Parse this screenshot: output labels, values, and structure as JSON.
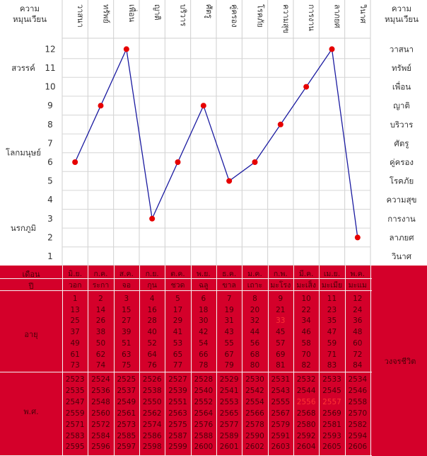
{
  "chart_data": {
    "type": "line",
    "corner_label": [
      "ความ",
      "หมุนเวียน"
    ],
    "categories": [
      "วาสนา",
      "ทรัพย์",
      "เพื่อน",
      "ญาติ",
      "บริวาร",
      "ศัตรู",
      "คู่ครอง",
      "โรคภัย",
      "ความสุข",
      "การงาน",
      "ลาภยศ",
      "วินาศ"
    ],
    "values": [
      6,
      9,
      12,
      3,
      6,
      9,
      5,
      6,
      8,
      10,
      12,
      2
    ],
    "ylim": [
      1,
      12
    ],
    "y_ticks": [
      1,
      2,
      3,
      4,
      5,
      6,
      7,
      8,
      9,
      10,
      11,
      12
    ],
    "zone_labels": [
      {
        "label": "สวรรค์",
        "y": 11
      },
      {
        "label": "โลกมนุษย์",
        "y": 6.5
      },
      {
        "label": "นรกภูมิ",
        "y": 2.5
      }
    ],
    "right_labels": [
      "วาสนา",
      "ทรัพย์",
      "เพื่อน",
      "ญาติ",
      "บริวาร",
      "ศัตรู",
      "คู่ครอง",
      "โรคภัย",
      "ความสุข",
      "การงาน",
      "ลาภยศ",
      "วินาศ"
    ],
    "line_color": "#1a1aa0",
    "marker_color": "#e60000",
    "grid": true
  },
  "table": {
    "month_label": "เดือน",
    "months": [
      "มิ.ย.",
      "ก.ค.",
      "ส.ค.",
      "ก.ย.",
      "ต.ค.",
      "พ.ย.",
      "ธ.ค.",
      "ม.ค.",
      "ก.พ.",
      "มี.ค.",
      "เม.ย.",
      "พ.ค."
    ],
    "year_label": "ปี",
    "years": [
      "วอก",
      "ระกา",
      "จอ",
      "กุน",
      "ชวด",
      "ฉลู",
      "ขาล",
      "เถาะ",
      "มะโรง",
      "มะเส็ง",
      "มะเมีย",
      "มะแม"
    ],
    "age_label": "อายุ",
    "ages": [
      [
        "1",
        "13",
        "25",
        "37",
        "49",
        "61",
        "73"
      ],
      [
        "2",
        "14",
        "26",
        "38",
        "50",
        "62",
        "74"
      ],
      [
        "3",
        "15",
        "27",
        "39",
        "51",
        "63",
        "75"
      ],
      [
        "4",
        "16",
        "28",
        "40",
        "52",
        "64",
        "76"
      ],
      [
        "5",
        "17",
        "29",
        "41",
        "53",
        "65",
        "77"
      ],
      [
        "6",
        "18",
        "30",
        "42",
        "54",
        "66",
        "78"
      ],
      [
        "7",
        "19",
        "31",
        "43",
        "55",
        "67",
        "79"
      ],
      [
        "8",
        "20",
        "32",
        "44",
        "56",
        "68",
        "80"
      ],
      [
        "9",
        "21",
        "33",
        "45",
        "57",
        "69",
        "81"
      ],
      [
        "10",
        "22",
        "34",
        "46",
        "58",
        "70",
        "82"
      ],
      [
        "11",
        "23",
        "35",
        "47",
        "59",
        "71",
        "83"
      ],
      [
        "12",
        "24",
        "36",
        "48",
        "60",
        "72",
        "84"
      ]
    ],
    "be_label": "พ.ศ.",
    "be_years": [
      [
        "2523",
        "2535",
        "2547",
        "2559",
        "2571",
        "2583",
        "2595"
      ],
      [
        "2524",
        "2536",
        "2548",
        "2560",
        "2572",
        "2584",
        "2596"
      ],
      [
        "2525",
        "2537",
        "2549",
        "2561",
        "2573",
        "2585",
        "2597"
      ],
      [
        "2526",
        "2538",
        "2550",
        "2562",
        "2574",
        "2586",
        "2598"
      ],
      [
        "2527",
        "2539",
        "2551",
        "2563",
        "2575",
        "2587",
        "2599"
      ],
      [
        "2528",
        "2540",
        "2552",
        "2564",
        "2576",
        "2588",
        "2600"
      ],
      [
        "2529",
        "2541",
        "2553",
        "2565",
        "2577",
        "2589",
        "2601"
      ],
      [
        "2530",
        "2542",
        "2554",
        "2566",
        "2578",
        "2590",
        "2602"
      ],
      [
        "2531",
        "2543",
        "2555",
        "2567",
        "2579",
        "2591",
        "2603"
      ],
      [
        "2532",
        "2544",
        "2556",
        "2568",
        "2580",
        "2592",
        "2604"
      ],
      [
        "2533",
        "2545",
        "2557",
        "2569",
        "2581",
        "2593",
        "2605"
      ],
      [
        "2534",
        "2546",
        "2558",
        "2570",
        "2582",
        "2594",
        "2606"
      ]
    ],
    "cycle_label": "วงจรชีวิต",
    "highlight_age": "33",
    "highlight_be": [
      "2556",
      "2557"
    ],
    "table_color": "#d4002a"
  }
}
